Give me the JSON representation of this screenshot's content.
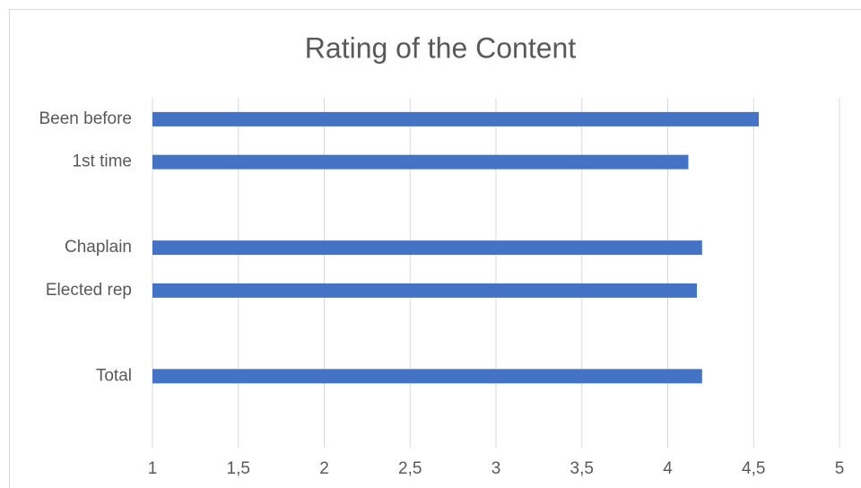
{
  "chart_data": {
    "type": "bar",
    "orientation": "horizontal",
    "title": "Rating of the Content",
    "categories": [
      "Been before",
      "1st time",
      null,
      "Chaplain",
      "Elected rep",
      null,
      "Total",
      null
    ],
    "values": [
      4.53,
      4.12,
      null,
      4.2,
      4.17,
      null,
      4.2,
      null
    ],
    "color": "#4472c4",
    "xlim": [
      1,
      5
    ],
    "xticks": [
      1,
      {
        "value": 1.5,
        "label": "1,5"
      },
      2,
      {
        "value": 2.5,
        "label": "2,5"
      },
      3,
      {
        "value": 3.5,
        "label": "3,5"
      },
      4,
      {
        "value": 4.5,
        "label": "4,5"
      },
      5
    ],
    "grid": true
  }
}
